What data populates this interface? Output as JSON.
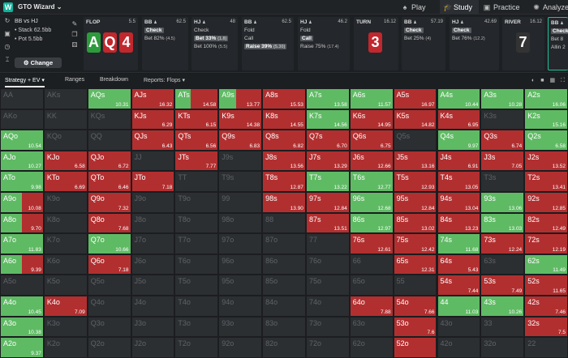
{
  "app": {
    "logo": "W",
    "name": "GTO Wizard",
    "nav": [
      {
        "label": "Play",
        "icon": "spade-icon"
      },
      {
        "label": "Study",
        "icon": "graduation-cap-icon"
      },
      {
        "label": "Practice",
        "icon": "gamepad-icon"
      },
      {
        "label": "Analyze",
        "icon": "bulb-icon"
      }
    ]
  },
  "preflop": {
    "positions": "BB vs HJ",
    "stack": "Stack 62.5bb",
    "pot": "Pot 5.5bb",
    "change_label": "Change"
  },
  "streets": {
    "flop": {
      "label": "FLOP",
      "amount": "5.5",
      "cards": [
        {
          "r": "A",
          "color": "#2c9b3b"
        },
        {
          "r": "Q",
          "color": "#c1272d"
        },
        {
          "r": "4",
          "color": "#c1272d"
        }
      ]
    },
    "bb1": {
      "pos": "BB",
      "amount": "62.5",
      "actions": [
        {
          "text": "Check",
          "sel": true
        },
        {
          "text": "Bet 82%",
          "extra": "(4.5)"
        }
      ]
    },
    "hj1": {
      "pos": "HJ",
      "amount": "48",
      "actions": [
        {
          "text": "Check"
        },
        {
          "text": "Bet 33%",
          "extra": "(1.8)",
          "sel": true
        },
        {
          "text": "Bet 100%",
          "extra": "(5.5)"
        }
      ]
    },
    "bb2": {
      "pos": "BB",
      "amount": "62.5",
      "actions": [
        {
          "text": "Fold"
        },
        {
          "text": "Call"
        },
        {
          "text": "Raise 39%",
          "extra": "(5.30)",
          "sel": true
        }
      ]
    },
    "hj2": {
      "pos": "HJ",
      "amount": "46.2",
      "actions": [
        {
          "text": "Fold"
        },
        {
          "text": "Call",
          "sel": true
        },
        {
          "text": "Raise 75%",
          "extra": "(17.4)"
        }
      ]
    },
    "turn": {
      "label": "TURN",
      "amount": "16.12",
      "card": "3",
      "color": "#c1272d"
    },
    "bb3": {
      "pos": "BB",
      "amount": "57.19",
      "actions": [
        {
          "text": "Check",
          "sel": true
        },
        {
          "text": "Bet 25%",
          "extra": "(4)"
        }
      ]
    },
    "hj3": {
      "pos": "HJ",
      "amount": "42.69",
      "actions": [
        {
          "text": "Check",
          "sel": true
        },
        {
          "text": "Bet 76%",
          "extra": "(12.2)"
        }
      ]
    },
    "river": {
      "label": "RIVER",
      "amount": "16.12",
      "card": "7",
      "color": "#333"
    },
    "bb4": {
      "pos": "BB",
      "actions": [
        {
          "text": "Check",
          "sel": true
        },
        {
          "text": "Bet 8"
        },
        {
          "text": "Allin 2"
        }
      ]
    }
  },
  "toolbar": {
    "tabs": [
      "Strategy + EV",
      "Ranges",
      "Breakdown",
      "Reports: Flops"
    ]
  },
  "ranks": [
    "A",
    "K",
    "Q",
    "J",
    "T",
    "9",
    "8",
    "7",
    "6",
    "5",
    "4",
    "3",
    "2"
  ],
  "cells": {
    "AA": {},
    "AKs": {},
    "AQs": {
      "g": 1,
      "ev": "10.31"
    },
    "AJs": {
      "r": 1,
      "ev": "16.32"
    },
    "ATs": {
      "g": 0.35,
      "r": 0.65,
      "ev": "14.58"
    },
    "A9s": {
      "g": 0.4,
      "r": 0.6,
      "ev": "13.77"
    },
    "A8s": {
      "r": 1,
      "ev": "15.53"
    },
    "A7s": {
      "g": 1,
      "ev": "13.58"
    },
    "A6s": {
      "g": 1,
      "ev": "11.57"
    },
    "A5s": {
      "r": 1,
      "ev": "16.97"
    },
    "A4s": {
      "g": 1,
      "ev": "10.44"
    },
    "A3s": {
      "g": 1,
      "ev": "10.28"
    },
    "A2s": {
      "g": 1,
      "ev": "16.06"
    },
    "AKo": {},
    "KK": {},
    "KQs": {},
    "KJs": {
      "r": 1,
      "ev": "6.29"
    },
    "KTs": {
      "r": 1,
      "ev": "6.15"
    },
    "K9s": {
      "r": 1,
      "ev": "14.38"
    },
    "K8s": {
      "r": 1,
      "ev": "14.55"
    },
    "K7s": {
      "g": 1,
      "ev": "14.56"
    },
    "K6s": {
      "r": 1,
      "ev": "14.95"
    },
    "K5s": {
      "r": 1,
      "ev": "14.82"
    },
    "K4s": {
      "r": 1,
      "ev": "6.95"
    },
    "K3s": {},
    "K2s": {
      "g": 1,
      "ev": "15.16"
    },
    "AQo": {
      "g": 1,
      "ev": "10.54"
    },
    "KQo": {},
    "QQ": {},
    "QJs": {
      "r": 1,
      "ev": "6.43"
    },
    "QTs": {
      "r": 1,
      "ev": "6.56"
    },
    "Q9s": {
      "r": 1,
      "ev": "6.83"
    },
    "Q8s": {
      "r": 1,
      "ev": "6.82"
    },
    "Q7s": {
      "r": 1,
      "ev": "6.70"
    },
    "Q6s": {
      "r": 1,
      "ev": "6.75"
    },
    "Q5s": {},
    "Q4s": {
      "g": 1,
      "ev": "9.97"
    },
    "Q3s": {
      "r": 1,
      "ev": "6.74"
    },
    "Q2s": {
      "g": 1,
      "ev": "6.58"
    },
    "AJo": {
      "g": 1,
      "ev": "10.27"
    },
    "KJo": {
      "r": 1,
      "ev": "6.58"
    },
    "QJo": {
      "r": 1,
      "ev": "6.72"
    },
    "JJ": {},
    "JTs": {
      "r": 1,
      "ev": "7.77"
    },
    "J9s": {},
    "J8s": {
      "r": 1,
      "ev": "13.56"
    },
    "J7s": {
      "r": 1,
      "ev": "13.29"
    },
    "J6s": {
      "r": 1,
      "ev": "12.66"
    },
    "J5s": {
      "r": 1,
      "ev": "13.16"
    },
    "J4s": {
      "r": 1,
      "ev": "6.91"
    },
    "J3s": {
      "r": 1,
      "ev": "7.05"
    },
    "J2s": {
      "r": 1,
      "ev": "13.52"
    },
    "ATo": {
      "g": 1,
      "ev": "9.98"
    },
    "KTo": {
      "r": 1,
      "ev": "6.69"
    },
    "QTo": {
      "r": 1,
      "ev": "6.46"
    },
    "JTo": {
      "r": 1,
      "ev": "7.18"
    },
    "TT": {},
    "T9s": {},
    "T8s": {
      "r": 1,
      "ev": "12.87"
    },
    "T7s": {
      "g": 1,
      "ev": "13.22"
    },
    "T6s": {
      "g": 1,
      "ev": "12.77"
    },
    "T5s": {
      "r": 1,
      "ev": "12.93"
    },
    "T4s": {
      "r": 1,
      "ev": "13.05"
    },
    "T3s": {},
    "T2s": {
      "r": 1,
      "ev": "13.41"
    },
    "A9o": {
      "g": 0.5,
      "r": 0.5,
      "ev": "10.08"
    },
    "K9o": {},
    "Q9o": {
      "r": 1,
      "ev": "7.32"
    },
    "J9o": {},
    "T9o": {},
    "99": {},
    "98s": {
      "r": 1,
      "ev": "13.90"
    },
    "97s": {
      "r": 1,
      "ev": "12.84"
    },
    "96s": {
      "g": 1,
      "ev": "12.68"
    },
    "95s": {
      "r": 1,
      "ev": "12.84"
    },
    "94s": {
      "r": 1,
      "ev": "13.04"
    },
    "93s": {
      "g": 1,
      "ev": "13.06"
    },
    "92s": {
      "r": 1,
      "ev": "12.85"
    },
    "A8o": {
      "g": 0.5,
      "r": 0.5,
      "ev": "9.70"
    },
    "K8o": {},
    "Q8o": {
      "r": 1,
      "ev": "7.68"
    },
    "J8o": {},
    "T8o": {},
    "98o": {},
    "88": {},
    "87s": {
      "r": 1,
      "ev": "13.51"
    },
    "86s": {
      "g": 1,
      "ev": "12.97"
    },
    "85s": {
      "r": 1,
      "ev": "13.02"
    },
    "84s": {
      "r": 1,
      "ev": "13.23"
    },
    "83s": {
      "g": 1,
      "ev": "13.03"
    },
    "82s": {
      "r": 1,
      "ev": "12.49"
    },
    "A7o": {
      "g": 1,
      "ev": "11.83"
    },
    "K7o": {},
    "Q7o": {
      "g": 1,
      "ev": "10.66"
    },
    "J7o": {},
    "T7o": {},
    "97o": {},
    "87o": {},
    "77": {},
    "76s": {
      "r": 1,
      "ev": "12.61"
    },
    "75s": {
      "r": 1,
      "ev": "12.42"
    },
    "74s": {
      "g": 1,
      "ev": "11.68"
    },
    "73s": {
      "r": 1,
      "ev": "12.24"
    },
    "72s": {
      "r": 1,
      "ev": "12.19"
    },
    "A6o": {
      "g": 0.5,
      "r": 0.5,
      "ev": "9.39"
    },
    "K6o": {},
    "Q6o": {
      "r": 1,
      "ev": "7.18"
    },
    "J6o": {},
    "T6o": {},
    "96o": {},
    "86o": {},
    "76o": {},
    "66": {},
    "65s": {
      "r": 1,
      "ev": "12.31"
    },
    "64s": {
      "r": 1,
      "ev": "5.43"
    },
    "63s": {},
    "62s": {
      "g": 1,
      "ev": "11.49"
    },
    "A5o": {},
    "K5o": {},
    "Q5o": {},
    "J5o": {},
    "T5o": {},
    "95o": {},
    "85o": {},
    "75o": {},
    "65o": {},
    "55": {},
    "54s": {
      "r": 1,
      "ev": "7.44"
    },
    "53s": {
      "r": 1,
      "ev": "7.49"
    },
    "52s": {
      "r": 1,
      "ev": "11.65"
    },
    "A4o": {
      "g": 1,
      "ev": "10.45"
    },
    "K4o": {
      "r": 1,
      "ev": "7.09"
    },
    "Q4o": {},
    "J4o": {},
    "T4o": {},
    "94o": {},
    "84o": {},
    "74o": {},
    "64o": {
      "r": 1,
      "ev": "7.88"
    },
    "54o": {
      "r": 1,
      "ev": "7.66"
    },
    "44": {
      "g": 1,
      "ev": "11.03"
    },
    "43s": {
      "g": 1,
      "ev": "10.26"
    },
    "42s": {
      "r": 1,
      "ev": "7.46"
    },
    "A3o": {
      "g": 1,
      "ev": "10.38"
    },
    "K3o": {},
    "Q3o": {},
    "J3o": {},
    "T3o": {},
    "93o": {},
    "83o": {},
    "73o": {},
    "63o": {},
    "53o": {
      "r": 1,
      "ev": "7.6"
    },
    "43o": {},
    "33": {},
    "32s": {
      "r": 1,
      "ev": "7.5"
    },
    "A2o": {
      "g": 1,
      "ev": "9.37"
    },
    "K2o": {},
    "Q2o": {},
    "J2o": {},
    "T2o": {},
    "92o": {},
    "82o": {},
    "72o": {},
    "62o": {},
    "52o": {
      "r": 1
    },
    "42o": {},
    "32o": {},
    "22": {}
  }
}
